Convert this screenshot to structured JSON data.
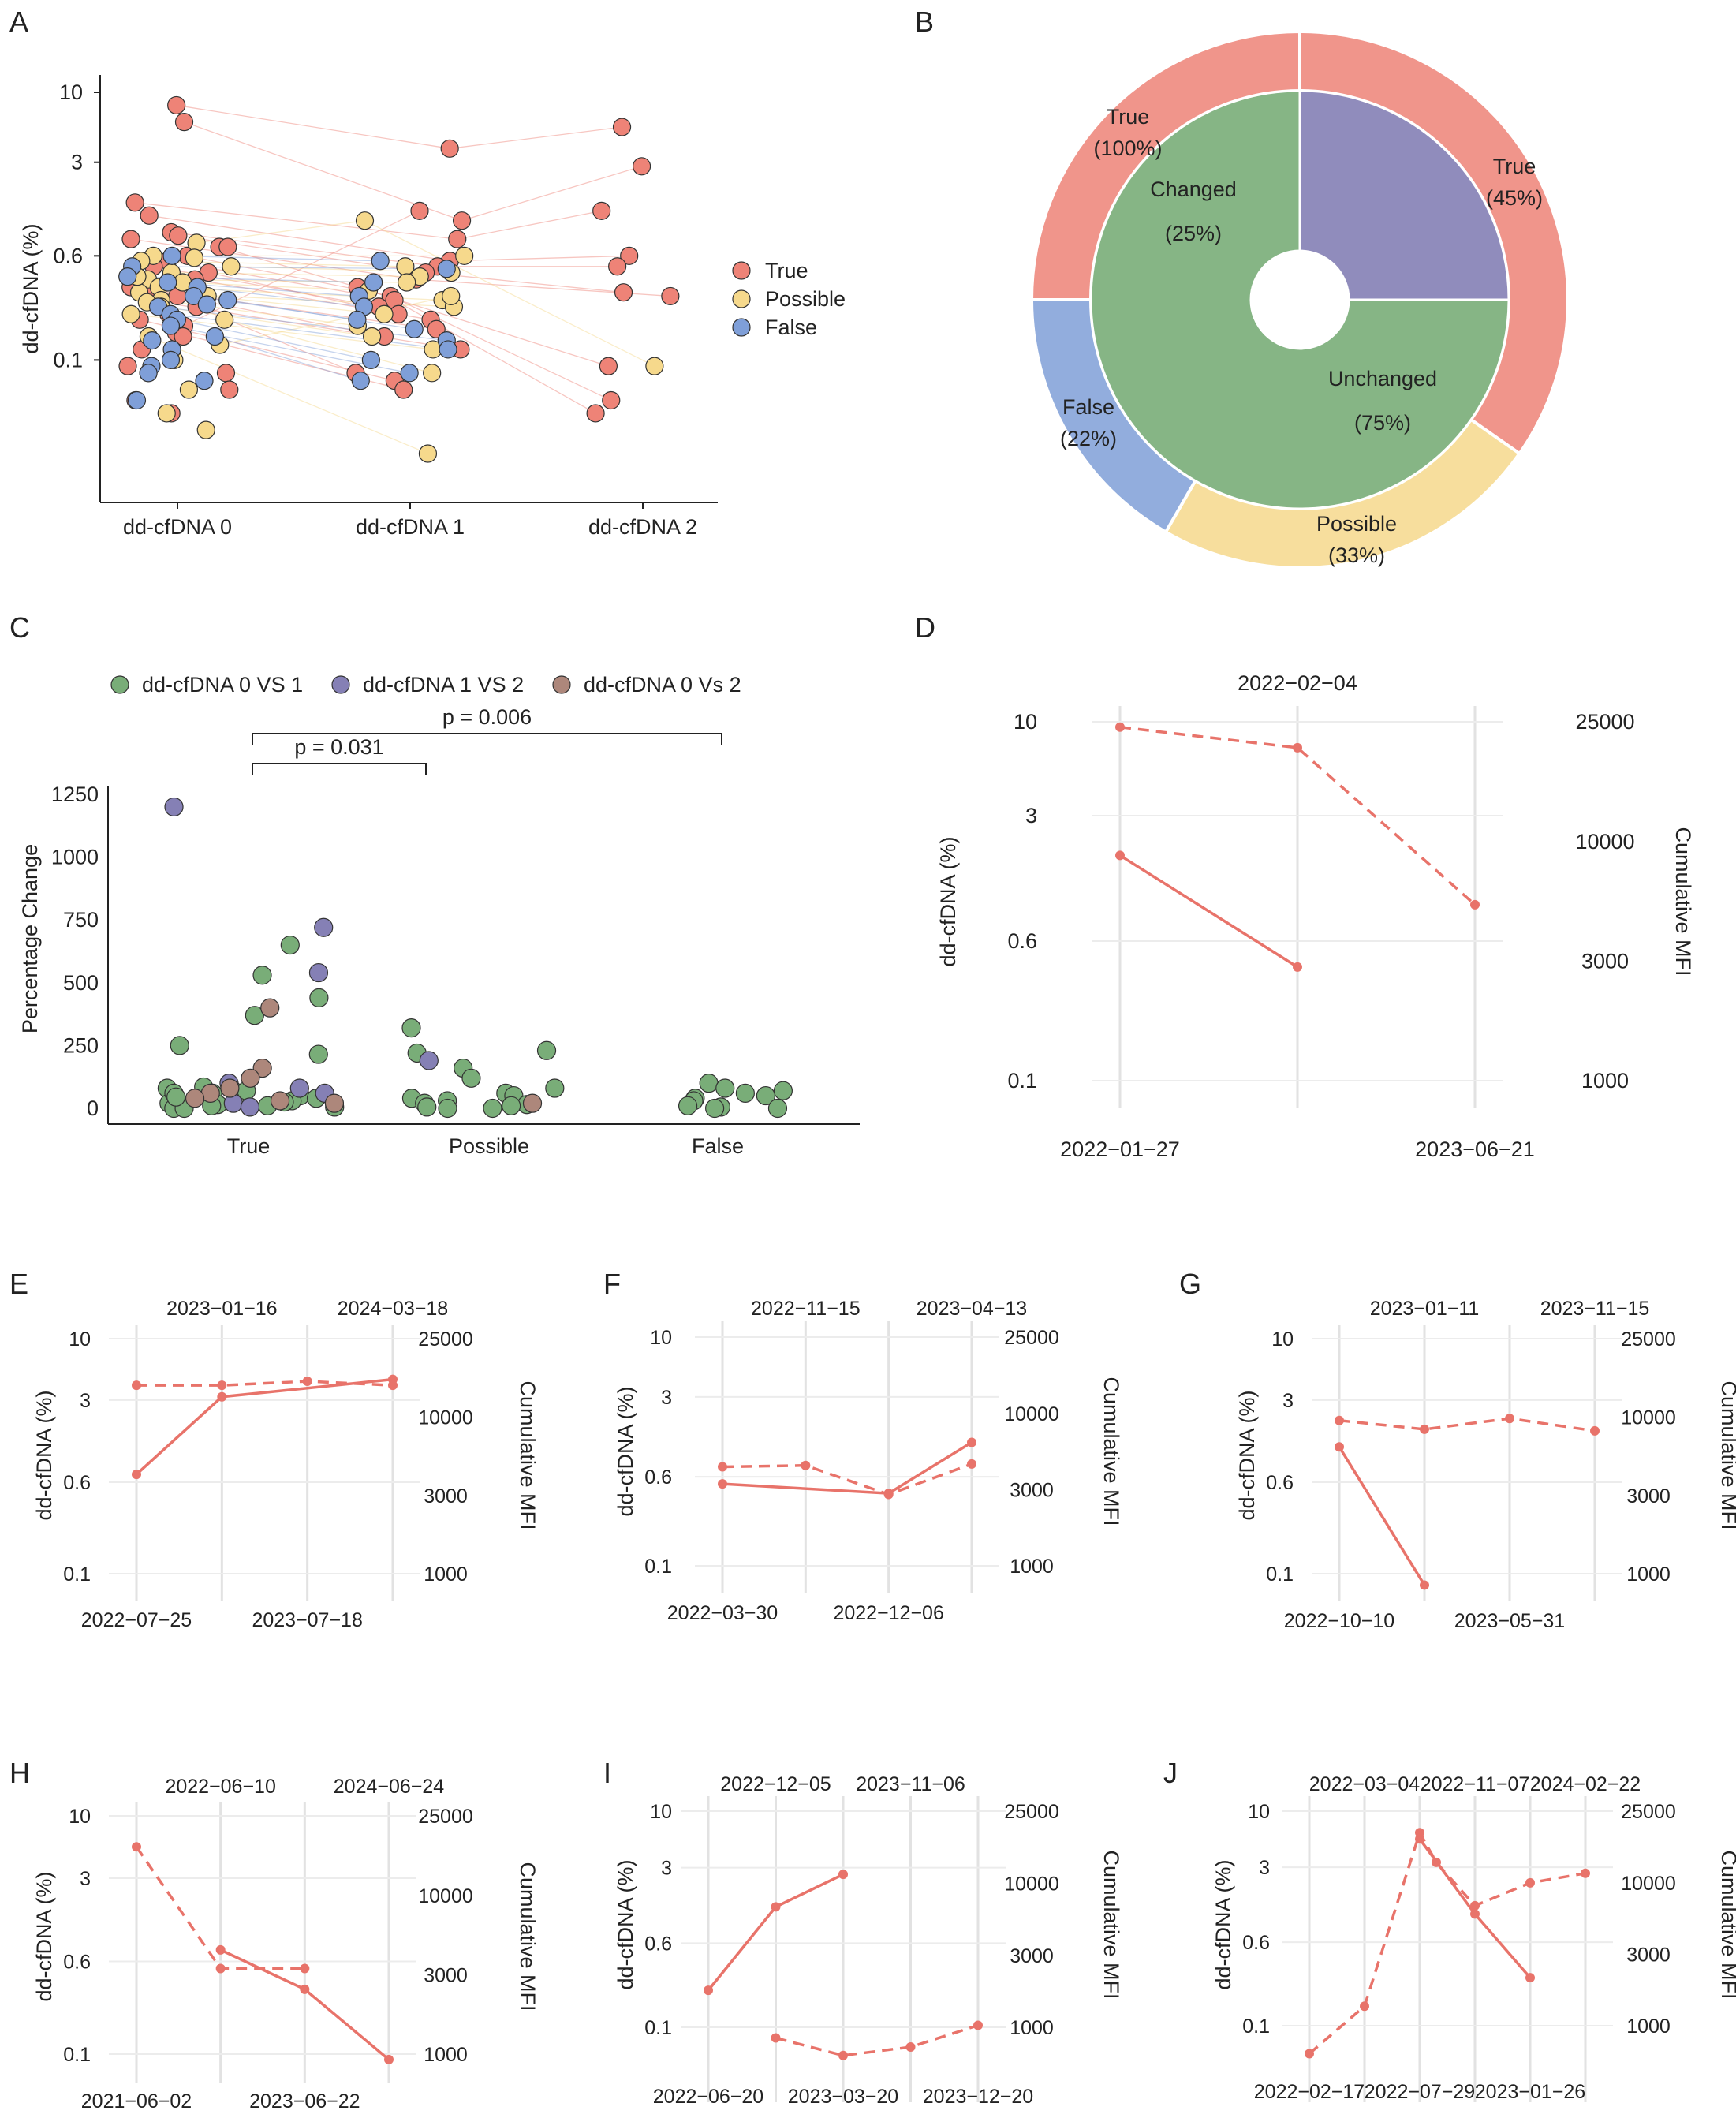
{
  "colors": {
    "true": "#ee8377",
    "possible": "#f6d98c",
    "false": "#7f9fd8",
    "v01": "#79ad78",
    "v12": "#8580b5",
    "v02": "#ad877b",
    "line": "#e8736a"
  },
  "panel_letters": [
    "A",
    "B",
    "C",
    "D",
    "E",
    "F",
    "G",
    "H",
    "I",
    "J"
  ],
  "chart_data": [
    {
      "id": "A",
      "type": "scatter",
      "ylabel": "dd-cfDNA (%)",
      "yscale": "log",
      "yticks": [
        "10",
        "3",
        "0.6",
        "0.1"
      ],
      "ytick_values": [
        10,
        3,
        0.6,
        0.1
      ],
      "categories": [
        "dd-cfDNA 0",
        "dd-cfDNA 1",
        "dd-cfDNA 2"
      ],
      "legend": [
        {
          "key": "true",
          "label": "True"
        },
        {
          "key": "possible",
          "label": "Possible"
        },
        {
          "key": "false",
          "label": "False"
        }
      ],
      "series": [
        {
          "group": "true",
          "x": 0,
          "values": [
            8,
            6,
            1.5,
            1.2,
            0.9,
            0.85,
            0.8,
            0.7,
            0.6,
            0.55,
            0.5,
            0.45,
            0.4,
            0.35,
            0.3,
            0.28,
            0.25,
            0.2,
            0.18,
            0.16,
            0.12,
            0.09,
            0.08,
            0.06,
            0.05,
            0.04,
            0.7,
            0.33,
            0.22,
            0.15
          ]
        },
        {
          "group": "possible",
          "x": 0,
          "values": [
            0.75,
            0.6,
            0.55,
            0.5,
            0.45,
            0.4,
            0.38,
            0.35,
            0.32,
            0.3,
            0.28,
            0.25,
            0.22,
            0.2,
            0.15,
            0.13,
            0.1,
            0.08,
            0.06,
            0.04,
            0.03,
            0.58,
            0.42,
            0.27
          ]
        },
        {
          "group": "false",
          "x": 0,
          "values": [
            0.6,
            0.5,
            0.42,
            0.38,
            0.35,
            0.3,
            0.28,
            0.25,
            0.22,
            0.2,
            0.18,
            0.15,
            0.12,
            0.1,
            0.09,
            0.08,
            0.07,
            0.05,
            0.14,
            0.26
          ]
        },
        {
          "group": "true",
          "x": 1,
          "values": [
            3.8,
            1.1,
            0.8,
            0.55,
            0.5,
            0.45,
            0.4,
            0.35,
            0.3,
            0.28,
            0.25,
            0.22,
            0.2,
            0.17,
            0.15,
            0.12,
            0.08,
            0.07,
            1.3,
            0.06
          ]
        },
        {
          "group": "possible",
          "x": 1,
          "values": [
            1.1,
            0.6,
            0.5,
            0.45,
            0.42,
            0.38,
            0.33,
            0.28,
            0.25,
            0.22,
            0.18,
            0.15,
            0.12,
            0.08,
            0.02,
            0.3
          ]
        },
        {
          "group": "false",
          "x": 1,
          "values": [
            0.55,
            0.48,
            0.38,
            0.3,
            0.25,
            0.2,
            0.17,
            0.14,
            0.12,
            0.1,
            0.08,
            0.07
          ]
        },
        {
          "group": "true",
          "x": 2,
          "values": [
            5.5,
            2.8,
            1.3,
            0.6,
            0.5,
            0.32,
            0.3,
            0.09,
            0.05,
            0.04
          ]
        },
        {
          "group": "possible",
          "x": 2,
          "values": [
            0.09
          ]
        }
      ]
    },
    {
      "id": "B",
      "type": "pie",
      "outer": [
        {
          "key": "true",
          "label": "True",
          "pct": "(100%)",
          "angles": [
            270,
            360
          ]
        },
        {
          "key": "true",
          "label": "True",
          "pct": "(45%)",
          "angles": [
            0,
            125
          ]
        },
        {
          "key": "possible",
          "label": "Possible",
          "pct": "(33%)",
          "angles": [
            125,
            210
          ]
        },
        {
          "key": "false",
          "label": "False",
          "pct": "(22%)",
          "angles": [
            210,
            270
          ]
        }
      ],
      "inner": [
        {
          "key": "v12",
          "label": "Changed",
          "pct": "(25%)",
          "value": 25
        },
        {
          "key": "v01",
          "label": "Unchanged",
          "pct": "(75%)",
          "value": 75
        }
      ]
    },
    {
      "id": "C",
      "type": "scatter",
      "ylabel": "Percentage Change",
      "yticks": [
        "1250",
        "1000",
        "750",
        "500",
        "250",
        "0"
      ],
      "ytick_values": [
        1250,
        1000,
        750,
        500,
        250,
        0
      ],
      "categories": [
        "True",
        "Possible",
        "False"
      ],
      "legend": [
        {
          "key": "v01",
          "label": "dd-cfDNA 0 VS 1"
        },
        {
          "key": "v12",
          "label": "dd-cfDNA 1 VS 2"
        },
        {
          "key": "v02",
          "label": "dd-cfDNA 0 Vs 2"
        }
      ],
      "brackets": [
        {
          "label": "p = 0.031",
          "from": 0,
          "to": 1
        },
        {
          "label": "p = 0.006",
          "from": 0,
          "to": 2
        }
      ],
      "series": [
        {
          "group": "v01",
          "x": 0,
          "values": [
            650,
            530,
            440,
            370,
            250,
            215,
            85,
            80,
            75,
            60,
            50,
            40,
            35,
            30,
            25,
            20,
            15,
            10,
            10,
            5,
            0,
            0,
            60,
            70,
            45
          ]
        },
        {
          "group": "v12",
          "x": 0,
          "values": [
            1200,
            720,
            540,
            100,
            80,
            60,
            20,
            5
          ]
        },
        {
          "group": "v02",
          "x": 0,
          "values": [
            400,
            160,
            120,
            80,
            60,
            40,
            30,
            20
          ]
        },
        {
          "group": "v01",
          "x": 1,
          "values": [
            320,
            230,
            220,
            160,
            120,
            80,
            60,
            50,
            40,
            30,
            20,
            15,
            10,
            5,
            0,
            0
          ]
        },
        {
          "group": "v12",
          "x": 1,
          "values": [
            190
          ]
        },
        {
          "group": "v02",
          "x": 1,
          "values": [
            20
          ]
        },
        {
          "group": "v01",
          "x": 2,
          "values": [
            100,
            80,
            70,
            60,
            50,
            40,
            30,
            10,
            5,
            0,
            0
          ]
        }
      ]
    },
    {
      "id": "D",
      "type": "line",
      "ylabel": "dd-cfDNA (%)",
      "y2label": "Cumulative MFI",
      "yticks": [
        "10",
        "3",
        "0.6",
        "0.1"
      ],
      "ytick_values": [
        10,
        3,
        0.6,
        0.1
      ],
      "y2ticks": [
        "25000",
        "10000",
        "3000",
        "1000"
      ],
      "y2tick_values": [
        25000,
        10000,
        3000,
        1000
      ],
      "xlabels_bottom": [
        {
          "i": 0,
          "t": "2022−01−27"
        },
        {
          "i": 2,
          "t": "2023−06−21"
        }
      ],
      "xlabels_top": [
        {
          "i": 1,
          "t": "2022−02−04"
        }
      ],
      "n": 3,
      "dd": [
        {
          "x": 0,
          "y": 1.8
        },
        {
          "x": 1,
          "y": 0.43
        }
      ],
      "mfi": [
        {
          "x": 0,
          "y": 24000
        },
        {
          "x": 1,
          "y": 20500
        },
        {
          "x": 2,
          "y": 5300
        }
      ]
    },
    {
      "id": "E",
      "type": "line",
      "ylabel": "dd-cfDNA (%)",
      "y2label": "Cumulative MFI",
      "yticks": [
        "10",
        "3",
        "0.6",
        "0.1"
      ],
      "ytick_values": [
        10,
        3,
        0.6,
        0.1
      ],
      "y2ticks": [
        "25000",
        "10000",
        "3000",
        "1000"
      ],
      "y2tick_values": [
        25000,
        10000,
        3000,
        1000
      ],
      "xlabels_bottom": [
        {
          "i": 0,
          "t": "2022−07−25"
        },
        {
          "i": 2,
          "t": "2023−07−18"
        }
      ],
      "xlabels_top": [
        {
          "i": 1,
          "t": "2023−01−16"
        },
        {
          "i": 3,
          "t": "2024−03−18"
        }
      ],
      "n": 4,
      "dd": [
        {
          "x": 0,
          "y": 0.7
        },
        {
          "x": 1,
          "y": 3.2
        },
        {
          "x": 3,
          "y": 4.5
        }
      ],
      "mfi": [
        {
          "x": 0,
          "y": 14500
        },
        {
          "x": 1,
          "y": 14500
        },
        {
          "x": 2,
          "y": 15200
        },
        {
          "x": 3,
          "y": 14500
        }
      ]
    },
    {
      "id": "F",
      "type": "line",
      "ylabel": "dd-cfDNA (%)",
      "y2label": "Cumulative MFI",
      "yticks": [
        "10",
        "3",
        "0.6",
        "0.1"
      ],
      "ytick_values": [
        10,
        3,
        0.6,
        0.1
      ],
      "y2ticks": [
        "25000",
        "10000",
        "3000",
        "1000"
      ],
      "y2tick_values": [
        25000,
        10000,
        3000,
        1000
      ],
      "xlabels_bottom": [
        {
          "i": 0,
          "t": "2022−03−30"
        },
        {
          "i": 2,
          "t": "2022−12−06"
        }
      ],
      "xlabels_top": [
        {
          "i": 1,
          "t": "2022−11−15"
        },
        {
          "i": 3,
          "t": "2023−04−13"
        }
      ],
      "n": 4,
      "dd": [
        {
          "x": 0,
          "y": 0.52
        },
        {
          "x": 2,
          "y": 0.43
        },
        {
          "x": 3,
          "y": 1.2
        }
      ],
      "mfi": [
        {
          "x": 0,
          "y": 4300
        },
        {
          "x": 1,
          "y": 4400
        },
        {
          "x": 2,
          "y": 2800
        },
        {
          "x": 3,
          "y": 4500
        }
      ]
    },
    {
      "id": "G",
      "type": "line",
      "ylabel": "dd-cfDNA (%)",
      "y2label": "Cumulative MFI",
      "yticks": [
        "10",
        "3",
        "0.6",
        "0.1"
      ],
      "ytick_values": [
        10,
        3,
        0.6,
        0.1
      ],
      "y2ticks": [
        "25000",
        "10000",
        "3000",
        "1000"
      ],
      "y2tick_values": [
        25000,
        10000,
        3000,
        1000
      ],
      "xlabels_bottom": [
        {
          "i": 0,
          "t": "2022−10−10"
        },
        {
          "i": 2,
          "t": "2023−05−31"
        }
      ],
      "xlabels_top": [
        {
          "i": 1,
          "t": "2023−01−11"
        },
        {
          "i": 3,
          "t": "2023−11−15"
        }
      ],
      "n": 4,
      "dd": [
        {
          "x": 0,
          "y": 1.2
        },
        {
          "x": 1,
          "y": 0.08
        }
      ],
      "mfi": [
        {
          "x": 0,
          "y": 9500
        },
        {
          "x": 1,
          "y": 8300
        },
        {
          "x": 2,
          "y": 9800
        },
        {
          "x": 3,
          "y": 8100
        }
      ]
    },
    {
      "id": "H",
      "type": "line",
      "ylabel": "dd-cfDNA (%)",
      "y2label": "Cumulative MFI",
      "yticks": [
        "10",
        "3",
        "0.6",
        "0.1"
      ],
      "ytick_values": [
        10,
        3,
        0.6,
        0.1
      ],
      "y2ticks": [
        "25000",
        "10000",
        "3000",
        "1000"
      ],
      "y2tick_values": [
        25000,
        10000,
        3000,
        1000
      ],
      "xlabels_bottom": [
        {
          "i": 0,
          "t": "2021−06−02"
        },
        {
          "i": 2,
          "t": "2023−06−22"
        }
      ],
      "xlabels_top": [
        {
          "i": 1,
          "t": "2022−06−10"
        },
        {
          "i": 3,
          "t": "2024−06−24"
        }
      ],
      "n": 4,
      "dd": [
        {
          "x": 1,
          "y": 0.75
        },
        {
          "x": 2,
          "y": 0.35
        },
        {
          "x": 3,
          "y": 0.09
        }
      ],
      "mfi": [
        {
          "x": 0,
          "y": 17500
        },
        {
          "x": 1,
          "y": 3300
        },
        {
          "x": 2,
          "y": 3300
        }
      ]
    },
    {
      "id": "I",
      "type": "line",
      "ylabel": "dd-cfDNA (%)",
      "y2label": "Cumulative MFI",
      "yticks": [
        "10",
        "3",
        "0.6",
        "0.1"
      ],
      "ytick_values": [
        10,
        3,
        0.6,
        0.1
      ],
      "y2ticks": [
        "25000",
        "10000",
        "3000",
        "1000"
      ],
      "y2tick_values": [
        25000,
        10000,
        3000,
        1000
      ],
      "xlabels_bottom": [
        {
          "i": 0,
          "t": "2022−06−20"
        },
        {
          "i": 2,
          "t": "2023−03−20"
        },
        {
          "i": 4,
          "t": "2023−12−20"
        }
      ],
      "xlabels_top": [
        {
          "i": 1,
          "t": "2022−12−05"
        },
        {
          "i": 3,
          "t": "2023−11−06"
        }
      ],
      "n": 5,
      "dd": [
        {
          "x": 0,
          "y": 0.22
        },
        {
          "x": 1,
          "y": 1.3
        },
        {
          "x": 2,
          "y": 2.6
        }
      ],
      "mfi": [
        {
          "x": 1,
          "y": 850
        },
        {
          "x": 2,
          "y": 650
        },
        {
          "x": 3,
          "y": 740
        },
        {
          "x": 4,
          "y": 1030
        }
      ]
    },
    {
      "id": "J",
      "type": "line",
      "ylabel": "dd-cfDNA (%)",
      "y2label": "Cumulative MFI",
      "yticks": [
        "10",
        "3",
        "0.6",
        "0.1"
      ],
      "ytick_values": [
        10,
        3,
        0.6,
        0.1
      ],
      "y2ticks": [
        "25000",
        "10000",
        "3000",
        "1000"
      ],
      "y2tick_values": [
        25000,
        10000,
        3000,
        1000
      ],
      "xlabels_bottom": [
        {
          "i": 0,
          "t": "2022−02−17"
        },
        {
          "i": 2,
          "t": "2022−07−29"
        },
        {
          "i": 4,
          "t": "2023−01−26"
        }
      ],
      "xlabels_top": [
        {
          "i": 1,
          "t": "2022−03−04"
        },
        {
          "i": 3,
          "t": "2022−11−07"
        },
        {
          "i": 5,
          "t": "2024−02−22"
        }
      ],
      "n": 6,
      "dd": [
        {
          "x": 2,
          "y": 5.5
        },
        {
          "x": 3,
          "y": 1.1
        },
        {
          "x": 4,
          "y": 0.28
        }
      ],
      "mfi": [
        {
          "x": 0,
          "y": 650
        },
        {
          "x": 1,
          "y": 1350
        },
        {
          "x": 2,
          "y": 19000
        },
        {
          "x": 2.3,
          "y": 13000
        },
        {
          "x": 3,
          "y": 6800
        },
        {
          "x": 4,
          "y": 10000
        },
        {
          "x": 5,
          "y": 11300
        }
      ]
    }
  ]
}
